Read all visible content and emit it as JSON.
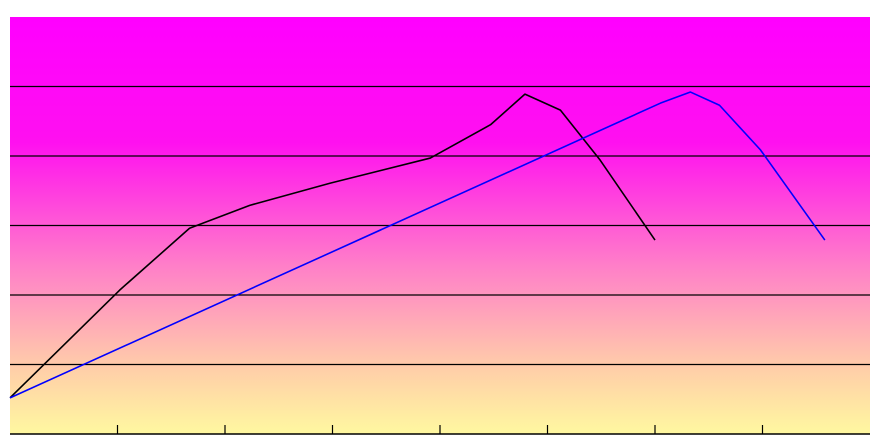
{
  "chart_data": {
    "type": "line",
    "xlim": [
      0,
      8
    ],
    "xticks": [
      1,
      2,
      3,
      4,
      5,
      6,
      7
    ],
    "ylim": [
      0,
      6
    ],
    "yticks": [
      1,
      2,
      3,
      4,
      5
    ],
    "grid": true,
    "series": [
      {
        "color": "#000000",
        "x": [
          0,
          1.02,
          1.67,
          2.23,
          2.98,
          3.91,
          4.47,
          4.79,
          5.12,
          5.49,
          6.0
        ],
        "values": [
          0.52,
          2.07,
          2.96,
          3.29,
          3.61,
          3.97,
          4.45,
          4.89,
          4.66,
          3.94,
          2.79
        ]
      },
      {
        "color": "#0000ff",
        "x": [
          0,
          6.05,
          6.33,
          6.6,
          6.98,
          7.58
        ],
        "values": [
          0.52,
          4.76,
          4.92,
          4.73,
          4.09,
          2.79
        ]
      }
    ]
  }
}
